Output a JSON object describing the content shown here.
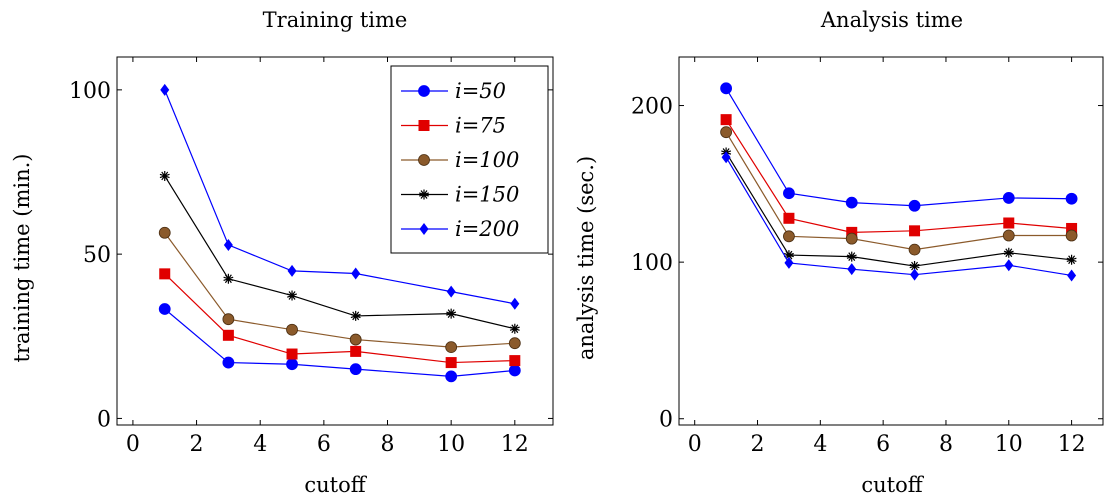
{
  "chart_data": [
    {
      "type": "line",
      "title": "Training time",
      "xlabel": "cutoff",
      "ylabel": "training time (min.)",
      "xlim": [
        -0.5,
        13.2
      ],
      "ylim": [
        -2,
        110
      ],
      "xticks": [
        0,
        2,
        4,
        6,
        8,
        10,
        12
      ],
      "yticks": [
        0,
        50,
        100
      ],
      "x": [
        1,
        3,
        5,
        7,
        10,
        12
      ],
      "legend": {
        "position": "top-right"
      },
      "series": [
        {
          "name": "i=50",
          "color": "#0000ff",
          "marker": "circle",
          "values": [
            33.3,
            17.0,
            16.5,
            15.0,
            12.8,
            14.6
          ]
        },
        {
          "name": "i=75",
          "color": "#e00000",
          "marker": "square",
          "values": [
            44.0,
            25.3,
            19.6,
            20.4,
            17.0,
            17.6
          ]
        },
        {
          "name": "i=100",
          "color": "#8b5a2b",
          "marker": "circle",
          "values": [
            56.5,
            30.2,
            27.0,
            24.0,
            21.7,
            22.9
          ]
        },
        {
          "name": "i=150",
          "color": "#000000",
          "marker": "star",
          "values": [
            73.8,
            42.5,
            37.4,
            31.2,
            31.9,
            27.3
          ]
        },
        {
          "name": "i=200",
          "color": "#0000ff",
          "marker": "diamond",
          "values": [
            100.0,
            52.8,
            44.9,
            44.1,
            38.6,
            34.9
          ]
        }
      ]
    },
    {
      "type": "line",
      "title": "Analysis time",
      "xlabel": "cutoff",
      "ylabel": "analysis time (sec.)",
      "xlim": [
        -0.5,
        13.0
      ],
      "ylim": [
        -4,
        231
      ],
      "xticks": [
        0,
        2,
        4,
        6,
        8,
        10,
        12
      ],
      "yticks": [
        0,
        100,
        200
      ],
      "x": [
        1,
        3,
        5,
        7,
        10,
        12
      ],
      "series": [
        {
          "name": "i=50",
          "color": "#0000ff",
          "marker": "circle",
          "values": [
            211.0,
            144.0,
            138.0,
            136.0,
            141.0,
            140.5
          ]
        },
        {
          "name": "i=75",
          "color": "#e00000",
          "marker": "square",
          "values": [
            191.0,
            128.0,
            119.0,
            120.0,
            125.0,
            121.5
          ]
        },
        {
          "name": "i=100",
          "color": "#8b5a2b",
          "marker": "circle",
          "values": [
            183.0,
            116.5,
            115.0,
            108.0,
            117.0,
            117.0
          ]
        },
        {
          "name": "i=150",
          "color": "#000000",
          "marker": "star",
          "values": [
            170.0,
            104.5,
            103.5,
            97.5,
            106.0,
            101.5
          ]
        },
        {
          "name": "i=200",
          "color": "#0000ff",
          "marker": "diamond",
          "values": [
            167.0,
            99.5,
            95.5,
            92.0,
            98.0,
            91.5
          ]
        }
      ]
    }
  ]
}
